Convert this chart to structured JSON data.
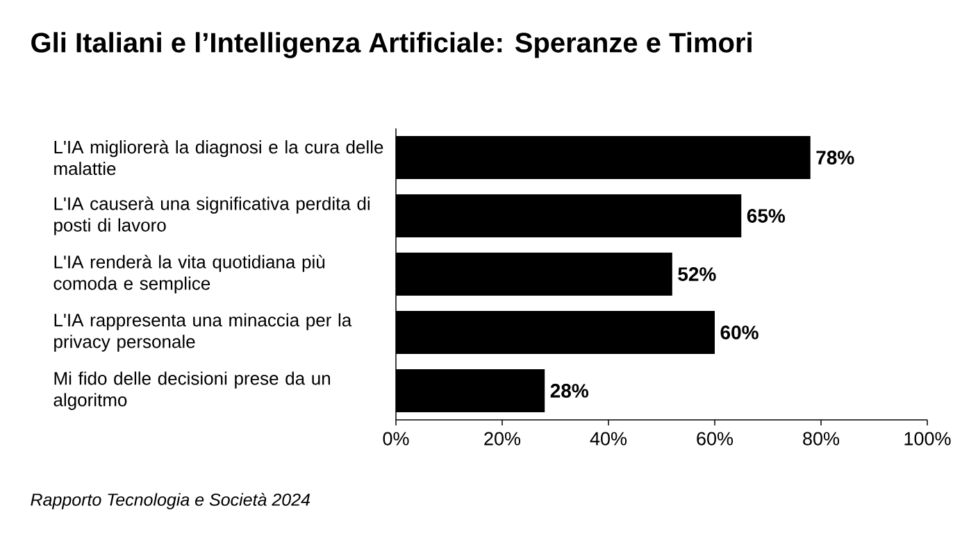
{
  "chart_data": {
    "type": "bar",
    "orientation": "horizontal",
    "title": "Gli Italiani e l’Intelligenza Artificiale: Speranze e Timori",
    "categories": [
      "L'IA migliorerà la diagnosi e la cura delle malattie",
      "L'IA causerà una significativa perdita di posti di lavoro",
      "L'IA renderà la vita quotidiana più comoda e semplice",
      "L'IA rappresenta una minaccia per la privacy personale",
      "Mi fido delle decisioni prese da un algoritmo"
    ],
    "values": [
      78,
      65,
      52,
      60,
      28
    ],
    "value_labels": [
      "78%",
      "65%",
      "52%",
      "60%",
      "28%"
    ],
    "color": "#000000",
    "xlim": [
      0,
      100
    ],
    "xticks": [
      {
        "value": 0,
        "label": "0%"
      },
      {
        "value": 20,
        "label": "20%"
      },
      {
        "value": 40,
        "label": "40%"
      },
      {
        "value": 60,
        "label": "60%"
      },
      {
        "value": 80,
        "label": "80%"
      },
      {
        "value": 100,
        "label": "100%"
      }
    ],
    "grid": false,
    "annotations": [
      "Rapporto Tecnologia e Società 2024"
    ]
  }
}
